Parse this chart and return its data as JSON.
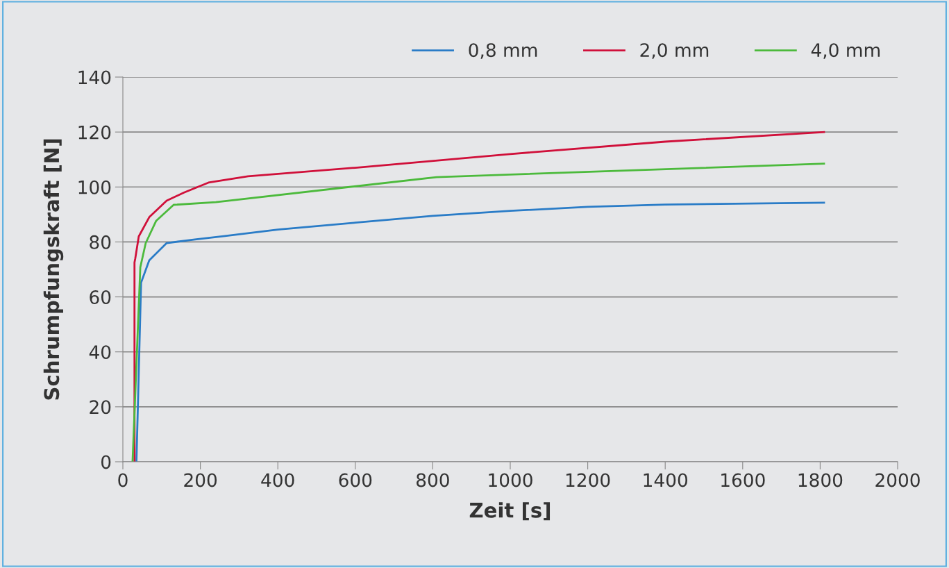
{
  "chart_data": {
    "type": "line",
    "xlabel": "Zeit [s]",
    "ylabel": "Schrumpfungskraft [N]",
    "xlim": [
      0,
      2000
    ],
    "ylim": [
      0,
      140
    ],
    "xticks": [
      0,
      200,
      400,
      600,
      800,
      1000,
      1200,
      1400,
      1600,
      1800,
      2000
    ],
    "yticks": [
      0,
      20,
      40,
      60,
      80,
      100,
      120,
      140
    ],
    "grid": "y",
    "legend": "top right",
    "series": [
      {
        "name": "0,8 mm",
        "color": "#2a7cc7",
        "x": [
          35,
          47,
          68,
          113,
          186,
          260,
          400,
          600,
          800,
          1000,
          1200,
          1400,
          1810
        ],
        "values": [
          0,
          65.2,
          73.3,
          79.6,
          80.9,
          82.1,
          84.5,
          87,
          89.5,
          91.3,
          92.8,
          93.6,
          94.3
        ]
      },
      {
        "name": "2,0 mm",
        "color": "#d0103a",
        "x": [
          30,
          30,
          32,
          41,
          68,
          113,
          158,
          221,
          323,
          600,
          1000,
          1400,
          1810
        ],
        "values": [
          0,
          72.5,
          74,
          82,
          89,
          95,
          98,
          101.6,
          103.9,
          107,
          112,
          116.5,
          120
        ]
      },
      {
        "name": "4,0 mm",
        "color": "#4cba3c",
        "x": [
          25,
          45,
          59,
          86,
          131,
          240,
          810,
          1810
        ],
        "values": [
          0,
          70.8,
          79.6,
          87.7,
          93.5,
          94.5,
          103.6,
          108.5
        ]
      }
    ]
  }
}
